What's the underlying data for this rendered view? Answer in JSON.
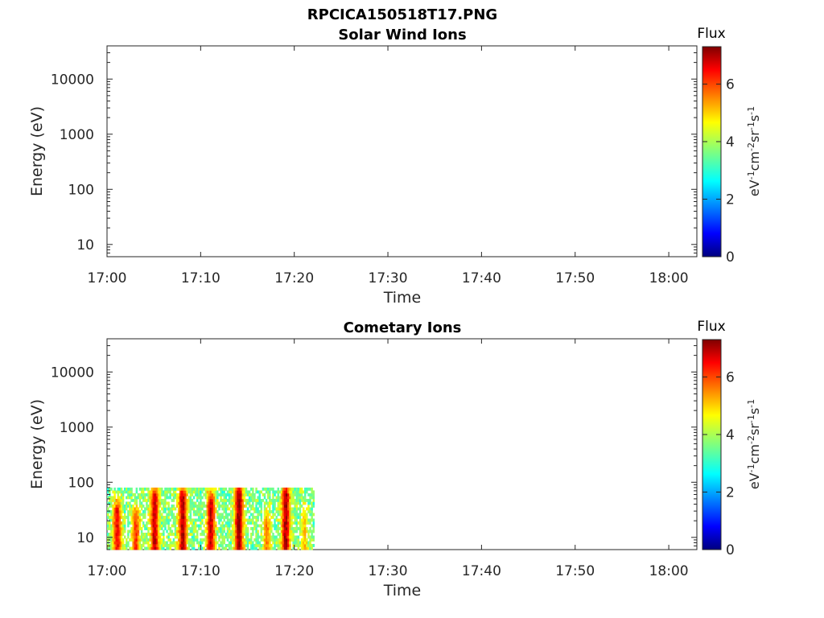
{
  "figure": {
    "title": "RPCICA150518T17.PNG"
  },
  "chart_data": [
    {
      "type": "heatmap",
      "title": "Solar Wind Ions",
      "xlabel": "Time",
      "ylabel": "Energy (eV)",
      "x_ticks": [
        "17:00",
        "17:10",
        "17:20",
        "17:30",
        "17:40",
        "17:50",
        "18:00"
      ],
      "y_ticks": [
        "10",
        "100",
        "1000",
        "10000"
      ],
      "y_scale": "log",
      "ylim": [
        6,
        40000
      ],
      "xlim": [
        "17:00",
        "18:03"
      ],
      "colorbar": {
        "title": "Flux",
        "ticks": [
          "0",
          "2",
          "4",
          "6"
        ],
        "range": [
          0,
          7.3
        ],
        "colormap": "jet",
        "unit_label": "eV-1cm-2sr-1s-1"
      },
      "data": []
    },
    {
      "type": "heatmap",
      "title": "Cometary Ions",
      "xlabel": "Time",
      "ylabel": "Energy (eV)",
      "x_ticks": [
        "17:00",
        "17:10",
        "17:20",
        "17:30",
        "17:40",
        "17:50",
        "18:00"
      ],
      "y_ticks": [
        "10",
        "100",
        "1000",
        "10000"
      ],
      "y_scale": "log",
      "ylim": [
        6,
        40000
      ],
      "xlim": [
        "17:00",
        "18:03"
      ],
      "colorbar": {
        "title": "Flux",
        "ticks": [
          "0",
          "2",
          "4",
          "6"
        ],
        "range": [
          0,
          7.3
        ],
        "colormap": "jet",
        "unit_label": "eV-1cm-2sr-1s-1"
      },
      "data": {
        "time_range": [
          "17:00",
          "17:22"
        ],
        "energy_range_eV": [
          6,
          80
        ],
        "intense_bursts": [
          {
            "time": "17:01",
            "energy_max_eV": 40,
            "flux": 6.5
          },
          {
            "time": "17:03",
            "energy_max_eV": 30,
            "flux": 6.0
          },
          {
            "time": "17:05",
            "energy_max_eV": 70,
            "flux": 6.8
          },
          {
            "time": "17:08",
            "energy_max_eV": 70,
            "flux": 7.0
          },
          {
            "time": "17:11",
            "energy_max_eV": 60,
            "flux": 6.8
          },
          {
            "time": "17:14",
            "energy_max_eV": 80,
            "flux": 7.2
          },
          {
            "time": "17:17",
            "energy_max_eV": 25,
            "flux": 5.5
          },
          {
            "time": "17:19",
            "energy_max_eV": 80,
            "flux": 7.0
          },
          {
            "time": "17:21",
            "energy_max_eV": 30,
            "flux": 5.0
          }
        ]
      }
    }
  ]
}
